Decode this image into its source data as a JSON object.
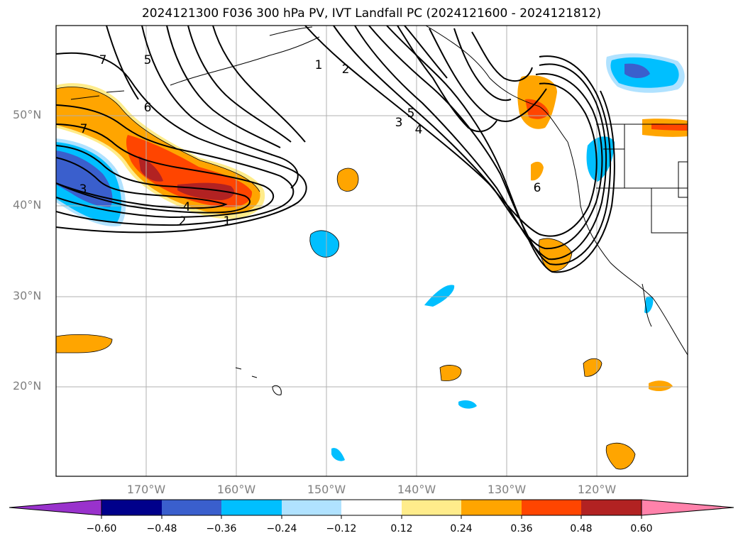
{
  "title": "2024121300 F036 300 hPa PV, IVT Landfall PC (2024121600 - 2024121812)",
  "latitude_labels": [
    "50°N",
    "40°N",
    "30°N",
    "20°N"
  ],
  "longitude_labels": [
    "170°W",
    "160°W",
    "150°W",
    "140°W",
    "130°W",
    "120°W"
  ],
  "pv_contour_labels": [
    "7",
    "5",
    "6",
    "7",
    "3",
    "4",
    "2",
    "1",
    "1",
    "2",
    "3",
    "5",
    "4",
    "6"
  ],
  "colorbar": {
    "ticks": [
      "−0.60",
      "−0.48",
      "−0.36",
      "−0.24",
      "−0.12",
      "0.12",
      "0.24",
      "0.36",
      "0.48",
      "0.60"
    ],
    "colors": [
      "#9932cc",
      "#00008b",
      "#3a5fcd",
      "#00bfff",
      "#b0e2ff",
      "#ffffff",
      "#ffec8b",
      "#ffa500",
      "#ff4500",
      "#b22222",
      "#ff82ab"
    ]
  }
}
